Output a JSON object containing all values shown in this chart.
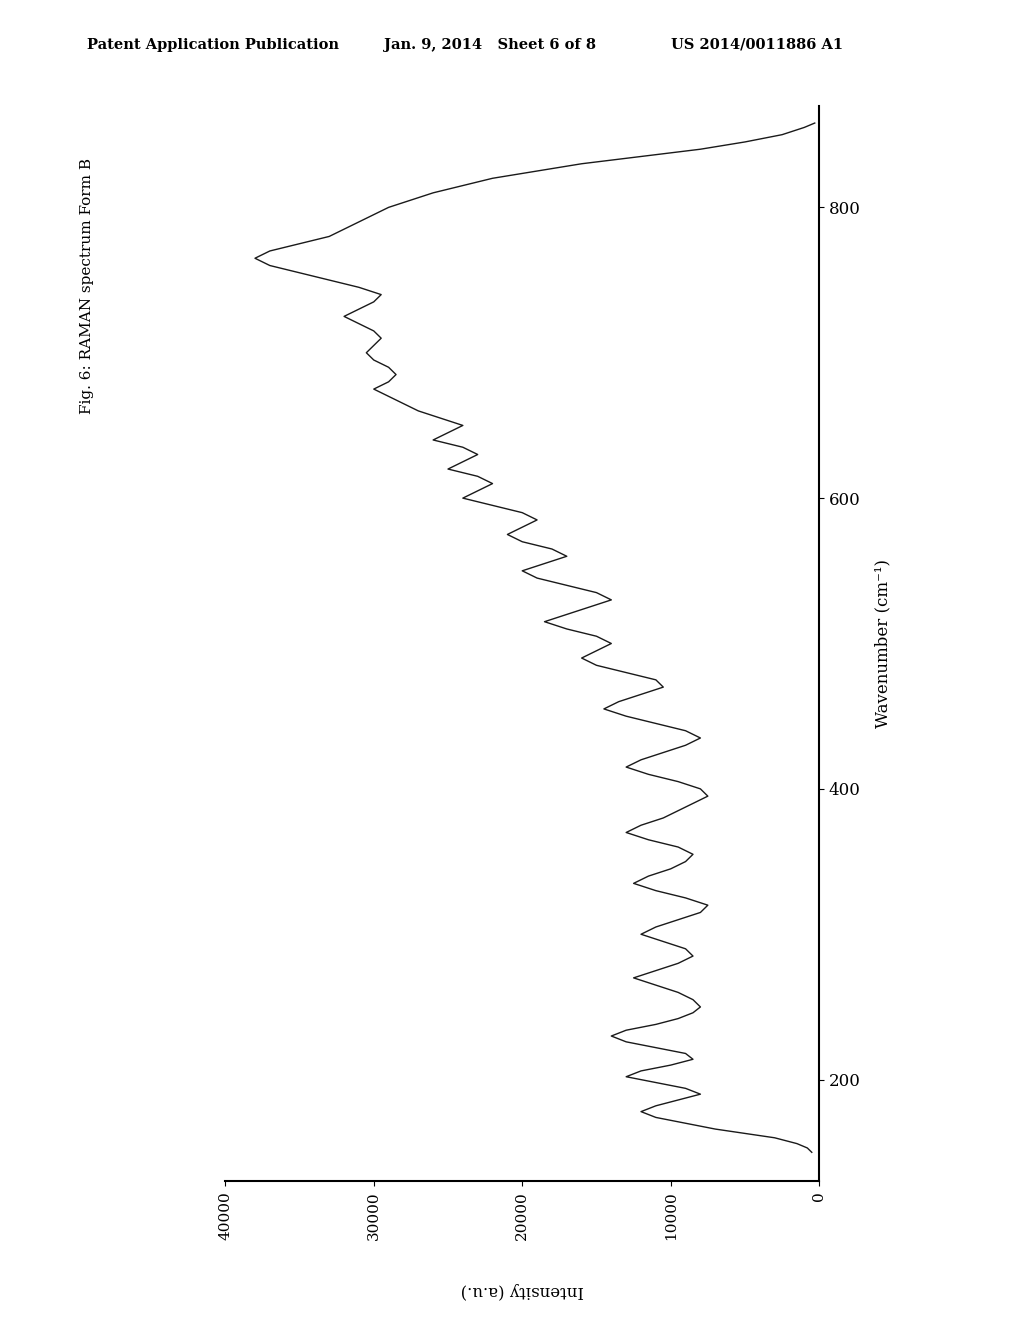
{
  "header_left": "Patent Application Publication",
  "header_center": "Jan. 9, 2014   Sheet 6 of 8",
  "header_right": "US 2014/0011886 A1",
  "fig_label": "Fig. 6: RAMAN spectrum Form B",
  "xlabel": "Intensity (a.u.)",
  "ylabel": "Wavenumber (cm⁻¹)",
  "yticks": [
    200,
    400,
    600,
    800
  ],
  "xticks": [
    0,
    10000,
    20000,
    30000,
    40000
  ],
  "xlim": [
    0,
    43000
  ],
  "ylim": [
    130,
    870
  ],
  "background_color": "#ffffff",
  "line_color": "#1a1a1a",
  "spectrum_wavenumbers": [
    150,
    153,
    156,
    160,
    163,
    166,
    170,
    174,
    178,
    182,
    186,
    190,
    194,
    198,
    202,
    206,
    210,
    214,
    218,
    222,
    226,
    230,
    234,
    238,
    242,
    246,
    250,
    255,
    260,
    265,
    270,
    275,
    280,
    285,
    290,
    295,
    300,
    305,
    310,
    315,
    320,
    325,
    330,
    335,
    340,
    345,
    350,
    355,
    360,
    365,
    370,
    375,
    380,
    385,
    390,
    395,
    400,
    405,
    410,
    415,
    420,
    425,
    430,
    435,
    440,
    445,
    450,
    455,
    460,
    465,
    470,
    475,
    480,
    485,
    490,
    495,
    500,
    505,
    510,
    515,
    520,
    525,
    530,
    535,
    540,
    545,
    550,
    555,
    560,
    565,
    570,
    575,
    580,
    585,
    590,
    595,
    600,
    605,
    610,
    615,
    620,
    625,
    630,
    635,
    640,
    645,
    650,
    655,
    660,
    665,
    670,
    675,
    680,
    685,
    690,
    695,
    700,
    705,
    710,
    715,
    720,
    725,
    730,
    735,
    740,
    745,
    750,
    755,
    760,
    765,
    770,
    775,
    780,
    785,
    790,
    795,
    800,
    805,
    810,
    815,
    820,
    825,
    830,
    835,
    840,
    845,
    850,
    855,
    858
  ],
  "spectrum_intensities": [
    500,
    800,
    1500,
    3000,
    5000,
    7000,
    9000,
    11000,
    12000,
    11000,
    9500,
    8000,
    9000,
    11000,
    13000,
    12000,
    10000,
    8500,
    9000,
    11000,
    13000,
    14000,
    13000,
    11000,
    9500,
    8500,
    8000,
    8500,
    9500,
    11000,
    12500,
    11000,
    9500,
    8500,
    9000,
    10500,
    12000,
    11000,
    9500,
    8000,
    7500,
    9000,
    11000,
    12500,
    11500,
    10000,
    9000,
    8500,
    9500,
    11500,
    13000,
    12000,
    10500,
    9500,
    8500,
    7500,
    8000,
    9500,
    11500,
    13000,
    12000,
    10500,
    9000,
    8000,
    9000,
    11000,
    13000,
    14500,
    13500,
    12000,
    10500,
    11000,
    13000,
    15000,
    16000,
    15000,
    14000,
    15000,
    17000,
    18500,
    17000,
    15500,
    14000,
    15000,
    17000,
    19000,
    20000,
    18500,
    17000,
    18000,
    20000,
    21000,
    20000,
    19000,
    20000,
    22000,
    24000,
    23000,
    22000,
    23000,
    25000,
    24000,
    23000,
    24000,
    26000,
    25000,
    24000,
    25500,
    27000,
    28000,
    29000,
    30000,
    29000,
    28500,
    29000,
    30000,
    30500,
    30000,
    29500,
    30000,
    31000,
    32000,
    31000,
    30000,
    29500,
    31000,
    33000,
    35000,
    37000,
    38000,
    37000,
    35000,
    33000,
    32000,
    31000,
    30000,
    29000,
    27500,
    26000,
    24000,
    22000,
    19000,
    16000,
    12000,
    8000,
    5000,
    2500,
    1000,
    300
  ]
}
